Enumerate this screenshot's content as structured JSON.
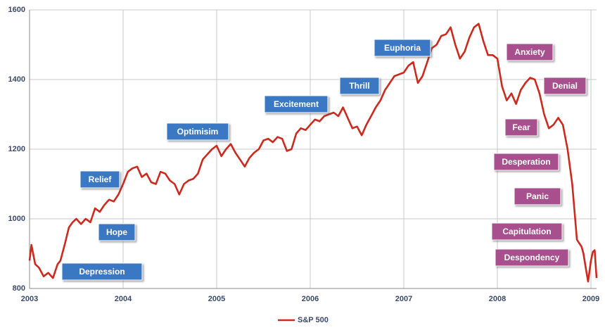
{
  "chart_data": {
    "type": "line",
    "x": [
      2003.0,
      2003.02,
      2003.06,
      2003.1,
      2003.15,
      2003.2,
      2003.25,
      2003.3,
      2003.33,
      2003.38,
      2003.42,
      2003.46,
      2003.5,
      2003.55,
      2003.6,
      2003.65,
      2003.7,
      2003.75,
      2003.8,
      2003.85,
      2003.9,
      2003.95,
      2004.0,
      2004.05,
      2004.1,
      2004.15,
      2004.2,
      2004.25,
      2004.3,
      2004.35,
      2004.4,
      2004.45,
      2004.5,
      2004.55,
      2004.6,
      2004.65,
      2004.7,
      2004.75,
      2004.8,
      2004.85,
      2004.9,
      2004.95,
      2005.0,
      2005.05,
      2005.1,
      2005.15,
      2005.2,
      2005.25,
      2005.3,
      2005.35,
      2005.4,
      2005.45,
      2005.5,
      2005.55,
      2005.6,
      2005.65,
      2005.7,
      2005.75,
      2005.8,
      2005.85,
      2005.9,
      2005.95,
      2006.0,
      2006.05,
      2006.1,
      2006.15,
      2006.2,
      2006.25,
      2006.3,
      2006.35,
      2006.4,
      2006.45,
      2006.5,
      2006.55,
      2006.6,
      2006.65,
      2006.7,
      2006.75,
      2006.8,
      2006.85,
      2006.9,
      2006.95,
      2007.0,
      2007.05,
      2007.1,
      2007.15,
      2007.2,
      2007.25,
      2007.3,
      2007.35,
      2007.4,
      2007.45,
      2007.5,
      2007.55,
      2007.6,
      2007.65,
      2007.7,
      2007.75,
      2007.8,
      2007.85,
      2007.9,
      2007.95,
      2008.0,
      2008.05,
      2008.1,
      2008.15,
      2008.2,
      2008.25,
      2008.3,
      2008.35,
      2008.4,
      2008.45,
      2008.5,
      2008.55,
      2008.6,
      2008.65,
      2008.7,
      2008.75,
      2008.8,
      2008.85,
      2008.9,
      2008.92,
      2008.95,
      2008.97,
      2009.0,
      2009.02,
      2009.04,
      2009.06
    ],
    "series": [
      {
        "name": "S&P 500",
        "color": "#cc2a1e",
        "values": [
          880,
          925,
          870,
          860,
          835,
          845,
          830,
          870,
          880,
          930,
          975,
          990,
          1000,
          985,
          1000,
          990,
          1030,
          1020,
          1040,
          1055,
          1050,
          1070,
          1100,
          1135,
          1145,
          1150,
          1120,
          1130,
          1105,
          1100,
          1135,
          1130,
          1110,
          1100,
          1070,
          1100,
          1110,
          1115,
          1130,
          1170,
          1185,
          1200,
          1210,
          1180,
          1200,
          1215,
          1190,
          1170,
          1150,
          1175,
          1190,
          1200,
          1225,
          1230,
          1220,
          1235,
          1230,
          1195,
          1200,
          1245,
          1260,
          1255,
          1270,
          1285,
          1280,
          1295,
          1300,
          1305,
          1295,
          1320,
          1290,
          1260,
          1265,
          1240,
          1270,
          1295,
          1320,
          1340,
          1370,
          1390,
          1410,
          1415,
          1420,
          1440,
          1450,
          1390,
          1410,
          1450,
          1490,
          1500,
          1525,
          1530,
          1550,
          1500,
          1460,
          1480,
          1520,
          1550,
          1560,
          1510,
          1470,
          1470,
          1460,
          1380,
          1340,
          1360,
          1330,
          1370,
          1390,
          1405,
          1400,
          1360,
          1300,
          1260,
          1270,
          1290,
          1270,
          1200,
          1100,
          940,
          920,
          900,
          850,
          820,
          880,
          905,
          910,
          830
        ]
      }
    ],
    "xlim": [
      2003,
      2009.06
    ],
    "xticks": [
      2003,
      2004,
      2005,
      2006,
      2007,
      2008,
      2009
    ],
    "ylim": [
      800,
      1600
    ],
    "yticks": [
      800,
      1000,
      1200,
      1400,
      1600
    ],
    "grid": true,
    "legend": "bottom",
    "annotations": [
      {
        "text": "Depression",
        "color": "#3a78c4"
      },
      {
        "text": "Hope",
        "color": "#3a78c4"
      },
      {
        "text": "Relief",
        "color": "#3a78c4"
      },
      {
        "text": "Optimisim",
        "color": "#3a78c4"
      },
      {
        "text": "Excitement",
        "color": "#3a78c4"
      },
      {
        "text": "Thrill",
        "color": "#3a78c4"
      },
      {
        "text": "Euphoria",
        "color": "#3a78c4"
      },
      {
        "text": "Anxiety",
        "color": "#a8508e"
      },
      {
        "text": "Denial",
        "color": "#a8508e"
      },
      {
        "text": "Fear",
        "color": "#a8508e"
      },
      {
        "text": "Desperation",
        "color": "#a8508e"
      },
      {
        "text": "Panic",
        "color": "#a8508e"
      },
      {
        "text": "Capitulation",
        "color": "#a8508e"
      },
      {
        "text": "Despondency",
        "color": "#a8508e"
      }
    ]
  }
}
